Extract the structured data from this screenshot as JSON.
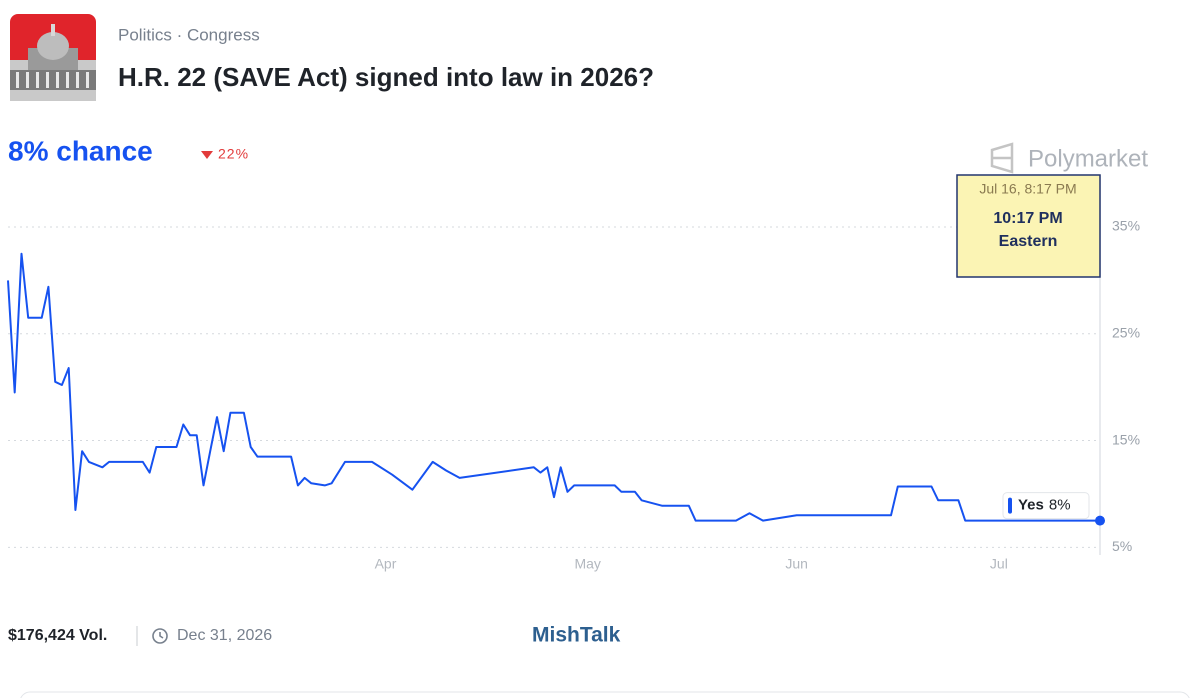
{
  "header": {
    "category": "Politics · Congress",
    "title": "H.R. 22 (SAVE Act) signed into law in 2026?"
  },
  "summary": {
    "headline": "8% chance",
    "change": "22%"
  },
  "brand": "Polymarket",
  "chart_data": {
    "type": "line",
    "x": [
      "Feb 4",
      "Feb 5",
      "Feb 6",
      "Feb 7",
      "Feb 9",
      "Feb 10",
      "Feb 11",
      "Feb 12",
      "Feb 13",
      "Feb 14",
      "Feb 15",
      "Feb 16",
      "Feb 18",
      "Feb 19",
      "Feb 24",
      "Feb 25",
      "Feb 26",
      "Mar 1",
      "Mar 2",
      "Mar 3",
      "Mar 4",
      "Mar 5",
      "Mar 6",
      "Mar 7",
      "Mar 8",
      "Mar 9",
      "Mar 11",
      "Mar 12",
      "Mar 13",
      "Mar 18",
      "Mar 19",
      "Mar 20",
      "Mar 21",
      "Mar 23",
      "Mar 24",
      "Mar 26",
      "Mar 30",
      "Apr 2",
      "Apr 5",
      "Apr 8",
      "Apr 10",
      "Apr 12",
      "Apr 23",
      "Apr 24",
      "Apr 25",
      "Apr 26",
      "Apr 27",
      "Apr 28",
      "Apr 29",
      "May 5",
      "May 6",
      "May 8",
      "May 9",
      "May 12",
      "May 16",
      "May 17",
      "May 23",
      "May 25",
      "May 27",
      "Jun 1",
      "Jun 10",
      "Jun 15",
      "Jun 16",
      "Jun 21",
      "Jun 22",
      "Jun 25",
      "Jun 26",
      "Jul 1",
      "Jul 2",
      "Jul 16"
    ],
    "series": [
      {
        "name": "Yes",
        "color": "#1652f0",
        "values": [
          30,
          19.5,
          32.5,
          26.5,
          26.5,
          29.4,
          20.5,
          20.2,
          21.8,
          8.5,
          14,
          13,
          12.5,
          13,
          13,
          12,
          14.4,
          14.4,
          16.5,
          15.5,
          15.5,
          10.8,
          14,
          17.2,
          14,
          17.6,
          17.6,
          14.4,
          13.5,
          13.5,
          10.8,
          11.5,
          11,
          10.8,
          11,
          13,
          13,
          11.8,
          10.4,
          13,
          12.2,
          11.5,
          12.5,
          12,
          12.5,
          9.7,
          12.5,
          10.2,
          10.8,
          10.8,
          10.2,
          10.2,
          9.4,
          8.9,
          8.9,
          7.5,
          7.5,
          8.2,
          7.5,
          8,
          8,
          8,
          10.7,
          10.7,
          9.4,
          9.4,
          7.5,
          7.5,
          7.5,
          7.5
        ],
        "end_label": "8%"
      }
    ],
    "xlim": [
      "Feb 4",
      "Jul 16"
    ],
    "xticks": [
      "Apr",
      "May",
      "Jun",
      "Jul"
    ],
    "ylim": [
      4,
      38
    ],
    "yticks": [
      {
        "value": 5,
        "label": "5%"
      },
      {
        "value": 15,
        "label": "15%"
      },
      {
        "value": 25,
        "label": "25%"
      },
      {
        "value": 35,
        "label": "35%"
      }
    ],
    "grid": true,
    "annotations": [
      "Jul 16, 8:17 PM",
      "10:17 PM",
      "Eastern"
    ]
  },
  "footer": {
    "volume": "$176,424 Vol.",
    "end_date": "Dec 31, 2026",
    "watermark": "MishTalk"
  }
}
